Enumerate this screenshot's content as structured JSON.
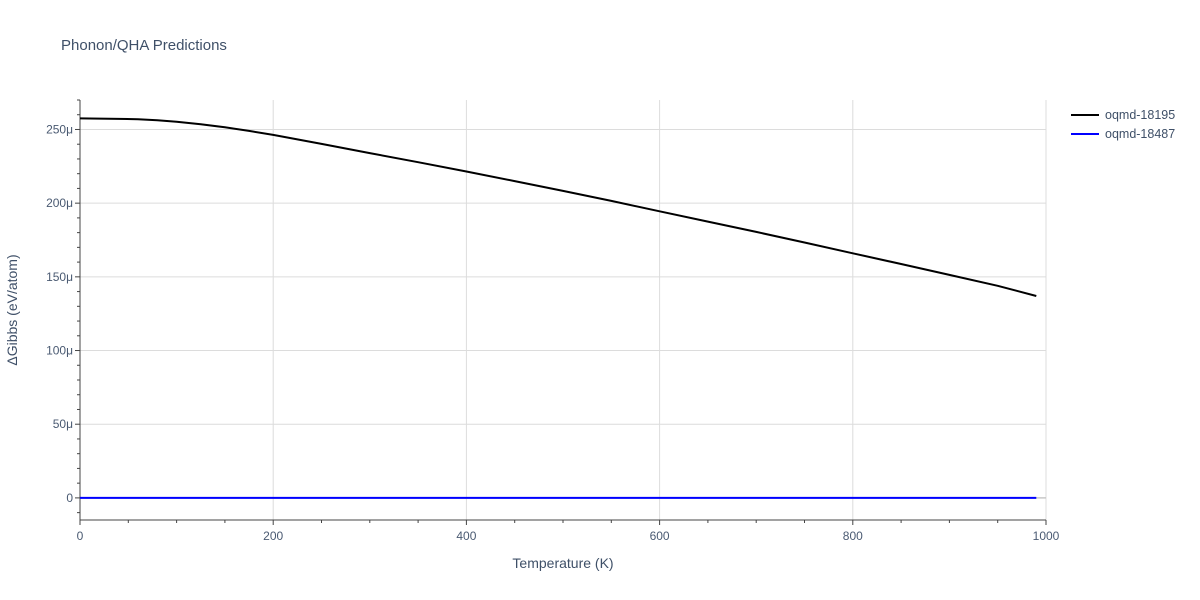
{
  "chart_data": {
    "type": "line",
    "title": "Phonon/QHA Predictions",
    "xlabel": "Temperature (K)",
    "ylabel": "ΔGibbs (eV/atom)",
    "xlim": [
      0,
      1000
    ],
    "ylim": [
      -15,
      270
    ],
    "x_ticks": [
      0,
      200,
      400,
      600,
      800,
      1000
    ],
    "x_tick_labels": [
      "0",
      "200",
      "400",
      "600",
      "800",
      "1000"
    ],
    "y_ticks": [
      0,
      50,
      100,
      150,
      200,
      250
    ],
    "y_tick_labels": [
      "0",
      "50μ",
      "100μ",
      "150μ",
      "200μ",
      "250μ"
    ],
    "grid": true,
    "legend_position": "top-right",
    "series": [
      {
        "name": "oqmd-18195",
        "color": "#000000",
        "x": [
          0,
          20,
          40,
          60,
          80,
          100,
          125,
          150,
          175,
          200,
          250,
          300,
          350,
          400,
          450,
          500,
          550,
          600,
          650,
          700,
          750,
          800,
          850,
          900,
          950,
          990
        ],
        "y": [
          257.5,
          257.4,
          257.2,
          257.0,
          256.3,
          255.3,
          253.5,
          251.5,
          249.0,
          246.3,
          240.2,
          234.0,
          227.8,
          221.5,
          215.0,
          208.3,
          201.5,
          194.5,
          187.5,
          180.5,
          173.3,
          166.0,
          158.7,
          151.3,
          143.9,
          137.0
        ]
      },
      {
        "name": "oqmd-18487",
        "color": "#0000ff",
        "x": [
          0,
          990
        ],
        "y": [
          0,
          0
        ]
      }
    ]
  }
}
